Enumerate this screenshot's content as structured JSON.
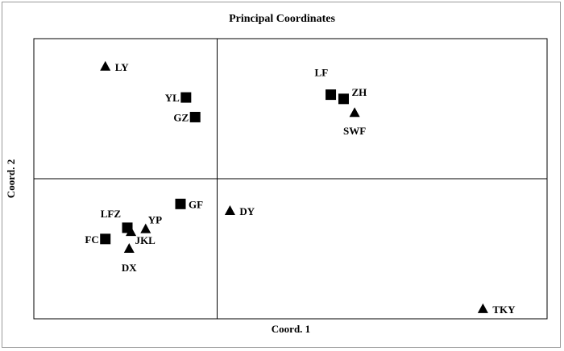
{
  "chart_data": {
    "type": "scatter",
    "title": "Principal Coordinates",
    "xlabel": "Coord. 1",
    "ylabel": "Coord. 2",
    "xlim": [
      -1.0,
      1.8
    ],
    "ylim": [
      -1.0,
      1.0
    ],
    "zero_lines": true,
    "legend": "none",
    "colors": {
      "marker": "#000000",
      "frame": "#000000",
      "border": "#9a9a9a"
    },
    "series": [
      {
        "marker": "square",
        "points": [
          {
            "label": "YL",
            "x": -0.17,
            "y": 0.58
          },
          {
            "label": "GZ",
            "x": -0.12,
            "y": 0.44
          },
          {
            "label": "LF",
            "x": 0.62,
            "y": 0.6
          },
          {
            "label": "ZH",
            "x": 0.69,
            "y": 0.57
          },
          {
            "label": "GF",
            "x": -0.2,
            "y": -0.18
          },
          {
            "label": "LFZ",
            "x": -0.49,
            "y": -0.35
          },
          {
            "label": "FC",
            "x": -0.61,
            "y": -0.43
          }
        ]
      },
      {
        "marker": "triangle",
        "points": [
          {
            "label": "LY",
            "x": -0.61,
            "y": 0.8
          },
          {
            "label": "SWF",
            "x": 0.75,
            "y": 0.47
          },
          {
            "label": "DY",
            "x": 0.07,
            "y": -0.23
          },
          {
            "label": "YP",
            "x": -0.39,
            "y": -0.36
          },
          {
            "label": "JKL",
            "x": -0.47,
            "y": -0.38
          },
          {
            "label": "DX",
            "x": -0.48,
            "y": -0.5
          },
          {
            "label": "TKY",
            "x": 1.45,
            "y": -0.93
          }
        ]
      }
    ]
  }
}
